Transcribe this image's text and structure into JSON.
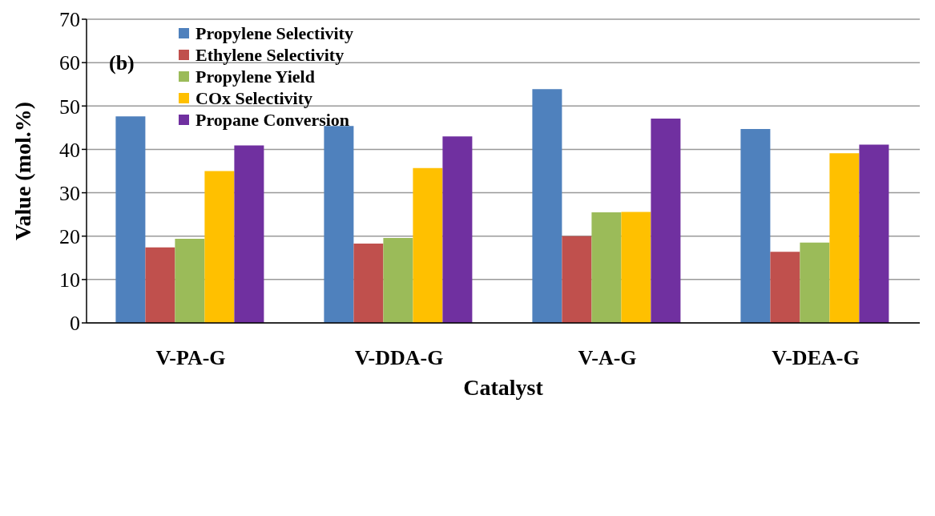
{
  "chart_data": {
    "type": "bar",
    "xlabel": "Catalyst",
    "ylabel": "Value (mol.%)",
    "categories": [
      "V-PA-G",
      "V-DDA-G",
      "V-A-G",
      "V-DEA-G"
    ],
    "series": [
      {
        "name": "Propylene Selectivity",
        "color": "#4f81bd",
        "values": [
          47.6,
          45.4,
          53.9,
          44.7
        ]
      },
      {
        "name": "Ethylene Selectivity",
        "color": "#c0504d",
        "values": [
          17.4,
          18.3,
          20.0,
          16.4
        ]
      },
      {
        "name": "Propylene Yield",
        "color": "#9bbb59",
        "values": [
          19.4,
          19.6,
          25.5,
          18.5
        ]
      },
      {
        "name": "COx Selectivity",
        "color": "#ffc000",
        "values": [
          35.0,
          35.7,
          25.6,
          39.1
        ]
      },
      {
        "name": "Propane Conversion",
        "color": "#7030a0",
        "values": [
          40.9,
          43.0,
          47.1,
          41.1
        ]
      }
    ],
    "ylim": [
      0,
      70
    ],
    "yticks": [
      0,
      10,
      20,
      30,
      40,
      50,
      60,
      70
    ],
    "grid": "y",
    "legend": "top left",
    "annotations": [
      "(b)"
    ]
  }
}
